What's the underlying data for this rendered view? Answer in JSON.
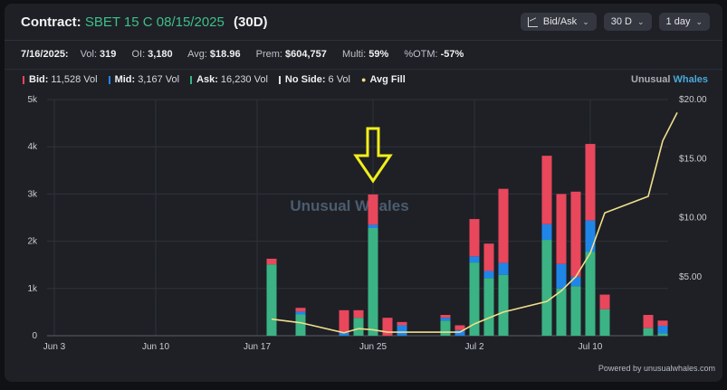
{
  "header": {
    "title_label": "Contract:",
    "contract": "SBET 15 C 08/15/2025",
    "days": "(30D)",
    "controls": [
      "Bid/Ask",
      "30 D",
      "1 day"
    ]
  },
  "stats": {
    "date": "7/16/2025:",
    "items": [
      {
        "label": "Vol:",
        "value": "319"
      },
      {
        "label": "OI:",
        "value": "3,180"
      },
      {
        "label": "Avg:",
        "value": "$18.96"
      },
      {
        "label": "Prem:",
        "value": "$604,757"
      },
      {
        "label": "Multi:",
        "value": "59%"
      },
      {
        "label": "%OTM:",
        "value": "-57%"
      }
    ]
  },
  "legend": [
    {
      "name": "Bid:",
      "value": "11,528 Vol",
      "color": "#e8475c"
    },
    {
      "name": "Mid:",
      "value": "3,167 Vol",
      "color": "#1f86e8"
    },
    {
      "name": "Ask:",
      "value": "16,230 Vol",
      "color": "#3bb384"
    },
    {
      "name": "No Side:",
      "value": "6 Vol",
      "color": "#e0e0e0"
    },
    {
      "name": "Avg Fill",
      "value": "",
      "color": "#f0de8a"
    }
  ],
  "brand": {
    "a": "Unusual",
    "b": "Whales"
  },
  "watermark": "Unusual Whales",
  "powered": "Powered by unusualwhales.com",
  "chart_data": {
    "type": "bar",
    "x_ticks": [
      "Jun 3",
      "Jun 10",
      "Jun 17",
      "Jun 25",
      "Jul 2",
      "Jul 10"
    ],
    "y_left_ticks": [
      "0",
      "1k",
      "2k",
      "3k",
      "4k",
      "5k"
    ],
    "y_right_ticks": [
      "$5.00",
      "$10.00",
      "$15.00",
      "$20.00"
    ],
    "ylim_left": [
      0,
      5000
    ],
    "ylim_right": [
      0,
      20
    ],
    "dates": [
      "Jun 18",
      "Jun 20",
      "Jun 23",
      "Jun 24",
      "Jun 25",
      "Jun 26",
      "Jun 27",
      "Jun 30",
      "Jul 1",
      "Jul 2",
      "Jul 3",
      "Jul 4",
      "Jul 7",
      "Jul 8",
      "Jul 9",
      "Jul 10",
      "Jul 11",
      "Jul 14",
      "Jul 15",
      "Jul 16"
    ],
    "series": [
      {
        "name": "Ask",
        "color": "#3bb384",
        "values": [
          1510,
          450,
          0,
          380,
          2280,
          0,
          0,
          320,
          0,
          1550,
          1220,
          1290,
          2030,
          1000,
          1050,
          1780,
          560,
          160,
          50,
          0
        ]
      },
      {
        "name": "Mid",
        "color": "#1f86e8",
        "values": [
          0,
          60,
          60,
          0,
          70,
          0,
          220,
          60,
          120,
          130,
          150,
          250,
          330,
          520,
          200,
          660,
          0,
          0,
          160,
          0
        ]
      },
      {
        "name": "Bid",
        "color": "#e8475c",
        "values": [
          120,
          80,
          480,
          160,
          640,
          380,
          70,
          60,
          100,
          790,
          580,
          1570,
          1450,
          1480,
          1800,
          1620,
          310,
          280,
          110,
          0
        ]
      }
    ],
    "avg_fill": [
      1.4,
      1.1,
      0.25,
      0.6,
      0.5,
      0.3,
      0.3,
      0.3,
      0.3,
      1.0,
      1.5,
      2.0,
      2.9,
      3.8,
      5.0,
      7.0,
      10.4,
      11.8,
      16.5,
      18.9
    ],
    "annotation": "down-arrow at Jun 25"
  }
}
